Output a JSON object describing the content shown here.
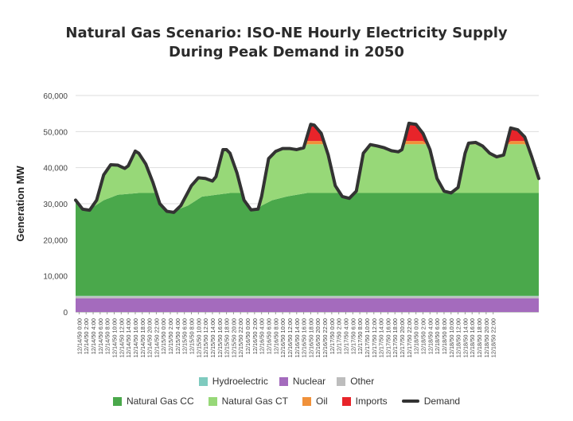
{
  "chart_data": {
    "type": "area",
    "title_lines": [
      "Natural Gas Scenario: ISO-NE Hourly Electricity Supply",
      "During Peak Demand in 2050"
    ],
    "ylabel": "Generation MW",
    "xlabel": "",
    "ylim": [
      0,
      60000
    ],
    "yticks": [
      "0",
      "10,000",
      "20,000",
      "30,000",
      "40,000",
      "50,000",
      "60,000"
    ],
    "ytick_values": [
      0,
      10000,
      20000,
      30000,
      40000,
      50000,
      60000
    ],
    "grid": true,
    "legend_position": "bottom",
    "x_categories": [
      "12/14/50 0:00",
      "12/14/50 2:00",
      "12/14/50 4:00",
      "12/14/50 6:00",
      "12/14/50 8:00",
      "12/14/50 10:00",
      "12/14/50 12:00",
      "12/14/50 14:00",
      "12/14/50 16:00",
      "12/14/50 18:00",
      "12/14/50 20:00",
      "12/14/50 22:00",
      "12/15/50 0:00",
      "12/15/50 2:00",
      "12/15/50 4:00",
      "12/15/50 6:00",
      "12/15/50 8:00",
      "12/15/50 10:00",
      "12/15/50 12:00",
      "12/15/50 14:00",
      "12/15/50 16:00",
      "12/15/50 18:00",
      "12/15/50 20:00",
      "12/15/50 22:00",
      "12/16/50 0:00",
      "12/16/50 2:00",
      "12/16/50 4:00",
      "12/16/50 6:00",
      "12/16/50 8:00",
      "12/16/50 10:00",
      "12/16/50 12:00",
      "12/16/50 14:00",
      "12/16/50 16:00",
      "12/16/50 18:00",
      "12/16/50 20:00",
      "12/16/50 22:00",
      "12/17/50 0:00",
      "12/17/50 2:00",
      "12/17/50 4:00",
      "12/17/50 6:00",
      "12/17/50 8:00",
      "12/17/50 10:00",
      "12/17/50 12:00",
      "12/17/50 14:00",
      "12/17/50 16:00",
      "12/17/50 18:00",
      "12/17/50 20:00",
      "12/17/50 22:00",
      "12/18/50 0:00",
      "12/18/50 2:00",
      "12/18/50 4:00",
      "12/18/50 6:00",
      "12/18/50 8:00",
      "12/18/50 10:00",
      "12/18/50 12:00",
      "12/18/50 14:00",
      "12/18/50 16:00",
      "12/18/50 18:00",
      "12/18/50 20:00",
      "12/18/50 22:00"
    ],
    "legend_row1": [
      {
        "name": "Hydroelectric",
        "color": "#7fcbbf"
      },
      {
        "name": "Nuclear",
        "color": "#a46bbd"
      },
      {
        "name": "Other",
        "color": "#bdbdbd"
      }
    ],
    "legend_row2": [
      {
        "name": "Natural Gas CC",
        "color": "#4aa84b"
      },
      {
        "name": "Natural Gas CT",
        "color": "#97d878"
      },
      {
        "name": "Oil",
        "color": "#f0913a"
      },
      {
        "name": "Imports",
        "color": "#e8242a"
      },
      {
        "name": "Demand",
        "color": "#333333",
        "kind": "line"
      }
    ],
    "demand_keyframes": [
      [
        0,
        31000
      ],
      [
        2,
        28500
      ],
      [
        4,
        28200
      ],
      [
        6,
        31000
      ],
      [
        8,
        38000
      ],
      [
        10,
        40800
      ],
      [
        12,
        40700
      ],
      [
        14,
        39800
      ],
      [
        15,
        40500
      ],
      [
        17,
        44600
      ],
      [
        18,
        44000
      ],
      [
        20,
        41000
      ],
      [
        22,
        36000
      ],
      [
        24,
        30000
      ],
      [
        26,
        27900
      ],
      [
        28,
        27600
      ],
      [
        30,
        29500
      ],
      [
        33,
        35000
      ],
      [
        35,
        37200
      ],
      [
        37,
        37000
      ],
      [
        39,
        36300
      ],
      [
        40,
        37500
      ],
      [
        42,
        45000
      ],
      [
        43,
        45000
      ],
      [
        44,
        44000
      ],
      [
        46,
        38500
      ],
      [
        48,
        31000
      ],
      [
        50,
        28300
      ],
      [
        52,
        28500
      ],
      [
        53,
        32000
      ],
      [
        55,
        42500
      ],
      [
        57,
        44500
      ],
      [
        59,
        45300
      ],
      [
        61,
        45300
      ],
      [
        63,
        45000
      ],
      [
        65,
        45500
      ],
      [
        67,
        52000
      ],
      [
        68,
        51800
      ],
      [
        70,
        49500
      ],
      [
        72,
        43500
      ],
      [
        74,
        35000
      ],
      [
        76,
        32000
      ],
      [
        78,
        31500
      ],
      [
        80,
        33500
      ],
      [
        82,
        44000
      ],
      [
        84,
        46400
      ],
      [
        86,
        46000
      ],
      [
        88,
        45500
      ],
      [
        90,
        44700
      ],
      [
        92,
        44400
      ],
      [
        93,
        45000
      ],
      [
        94,
        48500
      ],
      [
        95,
        52300
      ],
      [
        97,
        52000
      ],
      [
        99,
        49500
      ],
      [
        101,
        45000
      ],
      [
        103,
        37000
      ],
      [
        105,
        33500
      ],
      [
        107,
        33000
      ],
      [
        109,
        34500
      ],
      [
        111,
        44000
      ],
      [
        112,
        46800
      ],
      [
        114,
        47000
      ],
      [
        116,
        46000
      ],
      [
        118,
        44000
      ],
      [
        120,
        43000
      ],
      [
        122,
        43500
      ],
      [
        124,
        51000
      ],
      [
        126,
        50500
      ],
      [
        128,
        48500
      ],
      [
        130,
        43000
      ],
      [
        132,
        37000
      ]
    ],
    "series": [
      {
        "name": "Nuclear",
        "keyframes": [
          [
            0,
            3800
          ],
          [
            132,
            3800
          ]
        ]
      },
      {
        "name": "Other",
        "keyframes": [
          [
            0,
            550
          ],
          [
            132,
            550
          ]
        ]
      },
      {
        "name": "Hydroelectric",
        "keyframes": [
          [
            0,
            120
          ],
          [
            132,
            120
          ]
        ]
      },
      {
        "name": "Natural Gas CC",
        "keyframes": [
          [
            0,
            26500
          ],
          [
            4,
            24000
          ],
          [
            8,
            26500
          ],
          [
            12,
            28000
          ],
          [
            18,
            28500
          ],
          [
            24,
            28500
          ],
          [
            28,
            23500
          ],
          [
            32,
            25000
          ],
          [
            36,
            27500
          ],
          [
            40,
            28000
          ],
          [
            44,
            28500
          ],
          [
            48,
            28500
          ],
          [
            52,
            24500
          ],
          [
            56,
            26500
          ],
          [
            60,
            27500
          ],
          [
            66,
            28500
          ],
          [
            132,
            28500
          ]
        ]
      },
      {
        "name": "Oil",
        "keyframes": [
          [
            0,
            0
          ],
          [
            65,
            0
          ],
          [
            66,
            900
          ],
          [
            72,
            900
          ],
          [
            73,
            0
          ],
          [
            93,
            0
          ],
          [
            94,
            900
          ],
          [
            100,
            900
          ],
          [
            101,
            0
          ],
          [
            122,
            0
          ],
          [
            123,
            900
          ],
          [
            128,
            900
          ],
          [
            129,
            0
          ],
          [
            132,
            0
          ]
        ]
      }
    ]
  }
}
